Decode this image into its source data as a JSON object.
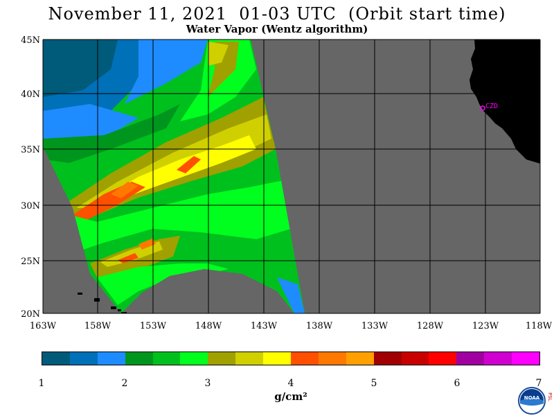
{
  "title": "November 11, 2021  01-03 UTC  (Orbit start time)",
  "subtitle": "Water Vapor (Wentz algorithm)",
  "map": {
    "lat_labels": [
      "45N",
      "40N",
      "35N",
      "30N",
      "25N",
      "20N"
    ],
    "lon_labels": [
      "163W",
      "158W",
      "153W",
      "148W",
      "143W",
      "138W",
      "133W",
      "128W",
      "123W",
      "118W"
    ],
    "station_label": "CZD",
    "colors": {
      "no_data": "#666666",
      "land": "#000000",
      "station": "#ff00ff",
      "grid": "#000000"
    }
  },
  "colorbar": {
    "colors": [
      "#005a7a",
      "#0070b8",
      "#1e8cff",
      "#00961e",
      "#00c01e",
      "#00ff1e",
      "#a0a000",
      "#d0d000",
      "#ffff00",
      "#ff5000",
      "#ff7800",
      "#ffa000",
      "#a00000",
      "#c80000",
      "#ff0000",
      "#a000a0",
      "#d000d0",
      "#ff00ff"
    ],
    "tick_labels": [
      "1",
      "2",
      "3",
      "4",
      "5",
      "6",
      "7"
    ],
    "unit": "g/cm²"
  },
  "logo": {
    "text": "NOAA",
    "side_text": "PSL"
  }
}
